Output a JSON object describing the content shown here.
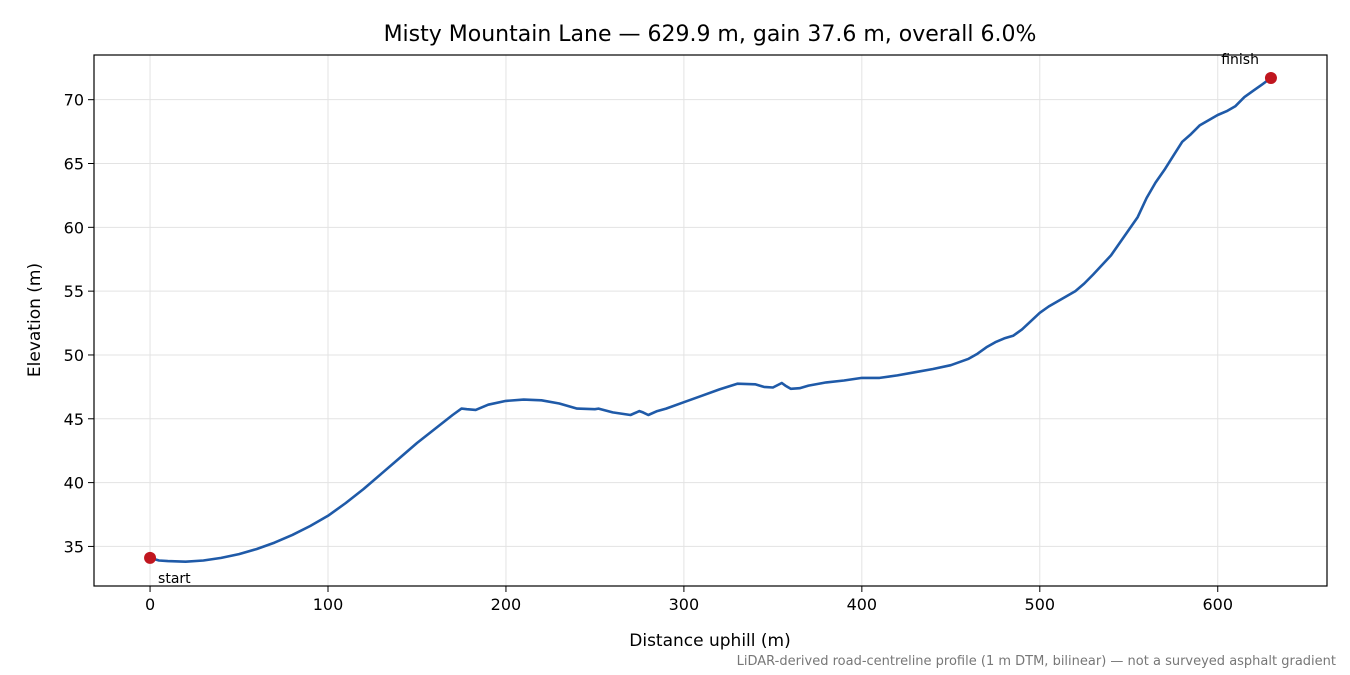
{
  "chart_data": {
    "type": "line",
    "title": "Misty Mountain Lane — 629.9 m, gain 37.6 m, overall 6.0%",
    "xlabel": "Distance uphill (m)",
    "ylabel": "Elevation (m)",
    "xlim": [
      -31.5,
      661.4
    ],
    "ylim": [
      31.9,
      73.5
    ],
    "xticks": [
      0,
      100,
      200,
      300,
      400,
      500,
      600
    ],
    "yticks": [
      35,
      40,
      45,
      50,
      55,
      60,
      65,
      70
    ],
    "grid": true,
    "line_color": "#1f5aa8",
    "marker_color": "#c0161f",
    "series": [
      {
        "x": [
          0,
          5,
          10,
          20,
          30,
          40,
          50,
          60,
          70,
          80,
          90,
          100,
          110,
          120,
          130,
          140,
          150,
          160,
          170,
          175,
          178,
          183,
          190,
          200,
          210,
          220,
          230,
          240,
          250,
          252,
          260,
          270,
          275,
          277,
          280,
          285,
          290,
          300,
          310,
          320,
          330,
          340,
          345,
          350,
          355,
          357,
          360,
          365,
          370,
          380,
          390,
          400,
          410,
          420,
          430,
          440,
          450,
          460,
          465,
          470,
          475,
          480,
          485,
          490,
          500,
          505,
          510,
          520,
          525,
          530,
          540,
          550,
          555,
          560,
          565,
          570,
          575,
          580,
          585,
          590,
          600,
          605,
          610,
          615,
          620,
          625,
          629.9
        ],
        "y": [
          34.1,
          33.9,
          33.85,
          33.8,
          33.9,
          34.1,
          34.4,
          34.8,
          35.3,
          35.9,
          36.6,
          37.4,
          38.4,
          39.5,
          40.7,
          41.9,
          43.1,
          44.2,
          45.3,
          45.8,
          45.75,
          45.7,
          46.1,
          46.4,
          46.5,
          46.45,
          46.2,
          45.8,
          45.75,
          45.8,
          45.5,
          45.3,
          45.6,
          45.5,
          45.3,
          45.6,
          45.8,
          46.3,
          46.8,
          47.3,
          47.75,
          47.7,
          47.5,
          47.45,
          47.8,
          47.6,
          47.35,
          47.4,
          47.6,
          47.85,
          48.0,
          48.2,
          48.2,
          48.4,
          48.65,
          48.9,
          49.2,
          49.7,
          50.1,
          50.6,
          51.0,
          51.3,
          51.5,
          52.0,
          53.3,
          53.8,
          54.2,
          55.0,
          55.6,
          56.3,
          57.8,
          59.8,
          60.8,
          62.3,
          63.5,
          64.5,
          65.6,
          66.7,
          67.3,
          68.0,
          68.8,
          69.1,
          69.5,
          70.2,
          70.7,
          71.2,
          71.7
        ]
      }
    ],
    "annotations": [
      {
        "label": "start",
        "x": 0,
        "y": 34.1
      },
      {
        "label": "finish",
        "x": 629.9,
        "y": 71.7
      }
    ],
    "footnote": "LiDAR-derived road-centreline profile (1 m DTM, bilinear) — not a surveyed asphalt gradient"
  }
}
